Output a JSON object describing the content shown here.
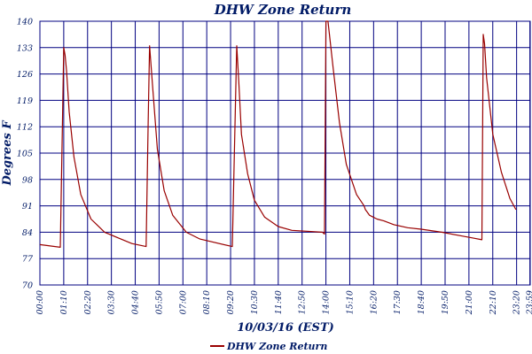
{
  "chart_data": {
    "type": "line",
    "title": "DHW Zone Return",
    "xlabel": "10/03/16 (EST)",
    "ylabel": "Degrees F",
    "ylim": [
      70,
      140
    ],
    "yticks": [
      "70",
      "77",
      "84",
      "91",
      "98",
      "105",
      "112",
      "119",
      "126",
      "133",
      "140"
    ],
    "xlim_minutes": [
      0,
      1440
    ],
    "xticks": [
      "00:00",
      "01:10",
      "02:20",
      "03:30",
      "04:40",
      "05:50",
      "07:00",
      "08:10",
      "09:20",
      "10:30",
      "11:40",
      "12:50",
      "14:00",
      "15:10",
      "16:20",
      "17:30",
      "18:40",
      "19:50",
      "21:00",
      "22:10",
      "23:20",
      "23:59"
    ],
    "grid": true,
    "legend_position": "bottom-center",
    "series": [
      {
        "name": "DHW Zone Return",
        "color": "#990000",
        "x": [
          0,
          60,
          70,
          74,
          78,
          86,
          100,
          120,
          150,
          190,
          230,
          270,
          312,
          318,
          322,
          330,
          345,
          365,
          390,
          430,
          470,
          565,
          578,
          584,
          592,
          610,
          630,
          660,
          700,
          740,
          830,
          836,
          840,
          846,
          862,
          880,
          900,
          930,
          952,
          956,
          960,
          964,
          968,
          990,
          1010,
          1040,
          1080,
          1120,
          1180,
          1240,
          1270,
          1298,
          1302,
          1306,
          1312,
          1330,
          1355,
          1380,
          1398
        ],
        "y": [
          80.7,
          80,
          133,
          131,
          127,
          116,
          104,
          94,
          87.5,
          84,
          82.5,
          81,
          80.2,
          113,
          133.5,
          124,
          106,
          95,
          88.5,
          84,
          82.2,
          80.2,
          133.5,
          124,
          110,
          99.5,
          92.5,
          88,
          85.5,
          84.5,
          84,
          83.5,
          140,
          140,
          127,
          113,
          102,
          94,
          91,
          90,
          89.5,
          89,
          88.5,
          87.5,
          87,
          86,
          85.2,
          84.8,
          84,
          83,
          82.5,
          82,
          136.5,
          134,
          125,
          110,
          100,
          93,
          90
        ]
      }
    ]
  }
}
